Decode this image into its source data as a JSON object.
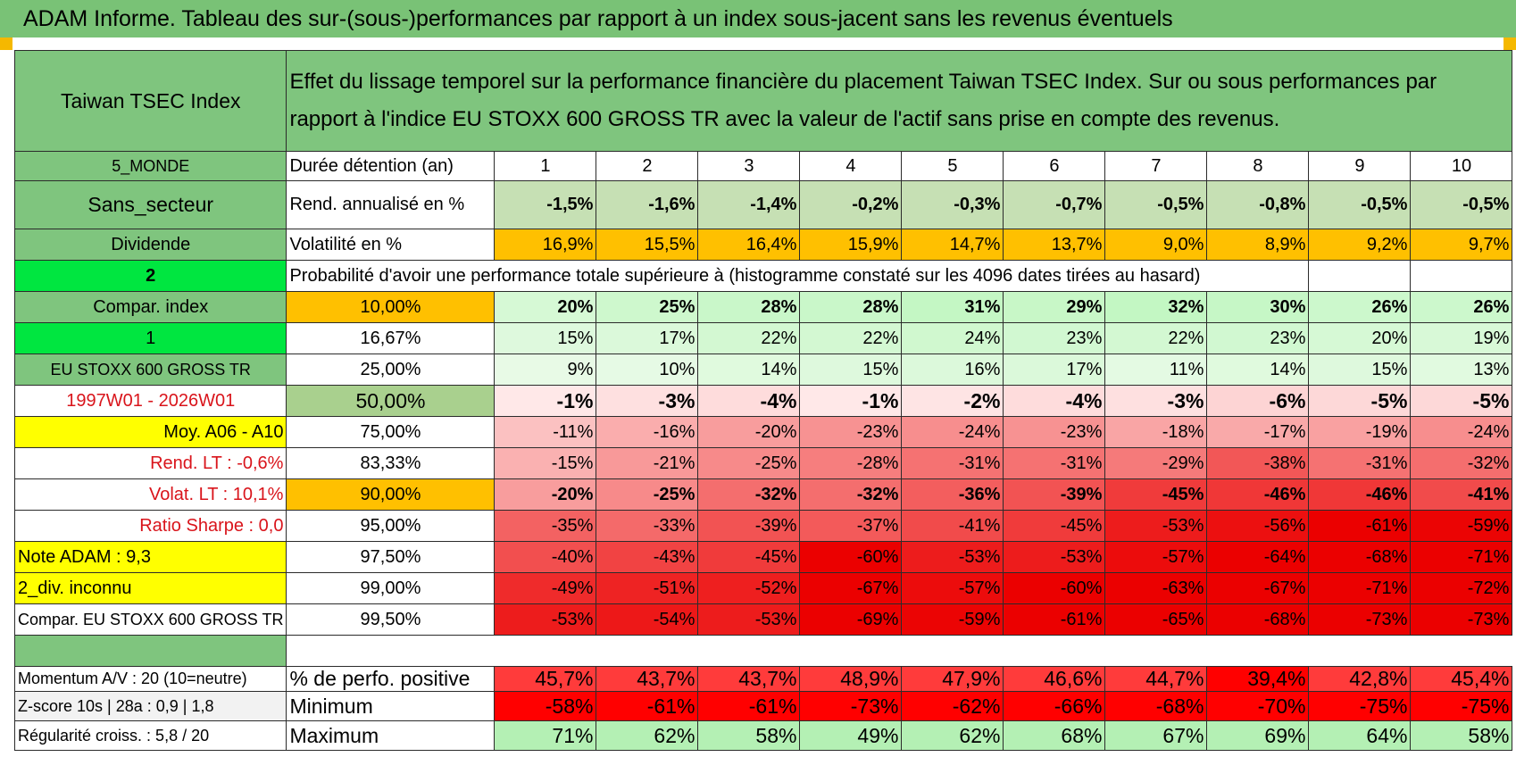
{
  "banner_title": "ADAM Informe. Tableau des sur-(sous-)performances par rapport à un index sous-jacent sans les revenus éventuels",
  "colors": {
    "header_green": "#7fc57e",
    "bright_green": "#00e640",
    "yellow": "#ffff00",
    "orange": "#ffc000",
    "label_red": "#d9141b"
  },
  "header": {
    "asset": "Taiwan TSEC Index",
    "description": "Effet du lissage temporel sur la performance financière du placement Taiwan TSEC Index. Sur ou sous performances par rapport à l'indice EU STOXX 600 GROSS TR avec la valeur de l'actif sans prise en compte des revenus."
  },
  "left_labels": {
    "zone": "5_MONDE",
    "secteur": "Sans_secteur",
    "dividende": "Dividende",
    "choice_2": "2",
    "compar_index": "Compar. index",
    "choice_1": "1",
    "benchmark": "EU STOXX 600 GROSS TR",
    "period": "1997W01 - 2026W01",
    "moy": "Moy. A06 - A10",
    "rend_lt": "Rend. LT :    -0,6%",
    "volat_lt": "Volat. LT :    10,1%",
    "sharpe": "Ratio Sharpe :     0,0",
    "note": "Note ADAM : 9,3",
    "div": "2_div. inconnu",
    "compar": "Compar. EU STOXX 600 GROSS TR"
  },
  "row_labels": {
    "duree": "Durée détention (an)",
    "rend": "Rend. annualisé en %",
    "vol": "Volatilité en %",
    "proba": "Probabilité d'avoir une performance totale supérieure à (histogramme constaté sur les 4096 dates tirées au hasard)"
  },
  "years": [
    "1",
    "2",
    "3",
    "4",
    "5",
    "6",
    "7",
    "8",
    "9",
    "10"
  ],
  "rend": [
    "-1,5%",
    "-1,6%",
    "-1,4%",
    "-0,2%",
    "-0,3%",
    "-0,7%",
    "-0,5%",
    "-0,8%",
    "-0,5%",
    "-0,5%"
  ],
  "vol": [
    "16,9%",
    "15,5%",
    "16,4%",
    "15,9%",
    "14,7%",
    "13,7%",
    "9,0%",
    "8,9%",
    "9,2%",
    "9,7%"
  ],
  "quantiles": [
    {
      "q": "10,00%",
      "v": [
        "20%",
        "25%",
        "28%",
        "28%",
        "31%",
        "29%",
        "32%",
        "30%",
        "26%",
        "26%"
      ]
    },
    {
      "q": "16,67%",
      "v": [
        "15%",
        "17%",
        "22%",
        "22%",
        "24%",
        "23%",
        "22%",
        "23%",
        "20%",
        "19%"
      ]
    },
    {
      "q": "25,00%",
      "v": [
        "9%",
        "10%",
        "14%",
        "15%",
        "16%",
        "17%",
        "11%",
        "14%",
        "15%",
        "13%"
      ]
    },
    {
      "q": "50,00%",
      "v": [
        "-1%",
        "-3%",
        "-4%",
        "-1%",
        "-2%",
        "-4%",
        "-3%",
        "-6%",
        "-5%",
        "-5%"
      ]
    },
    {
      "q": "75,00%",
      "v": [
        "-11%",
        "-16%",
        "-20%",
        "-23%",
        "-24%",
        "-23%",
        "-18%",
        "-17%",
        "-19%",
        "-24%"
      ]
    },
    {
      "q": "83,33%",
      "v": [
        "-15%",
        "-21%",
        "-25%",
        "-28%",
        "-31%",
        "-31%",
        "-29%",
        "-38%",
        "-31%",
        "-32%"
      ]
    },
    {
      "q": "90,00%",
      "v": [
        "-20%",
        "-25%",
        "-32%",
        "-32%",
        "-36%",
        "-39%",
        "-45%",
        "-46%",
        "-46%",
        "-41%"
      ]
    },
    {
      "q": "95,00%",
      "v": [
        "-35%",
        "-33%",
        "-39%",
        "-37%",
        "-41%",
        "-45%",
        "-53%",
        "-56%",
        "-61%",
        "-59%"
      ]
    },
    {
      "q": "97,50%",
      "v": [
        "-40%",
        "-43%",
        "-45%",
        "-60%",
        "-53%",
        "-53%",
        "-57%",
        "-64%",
        "-68%",
        "-71%"
      ]
    },
    {
      "q": "99,00%",
      "v": [
        "-49%",
        "-51%",
        "-52%",
        "-67%",
        "-57%",
        "-60%",
        "-63%",
        "-67%",
        "-71%",
        "-72%"
      ]
    },
    {
      "q": "99,50%",
      "v": [
        "-53%",
        "-54%",
        "-53%",
        "-69%",
        "-59%",
        "-61%",
        "-65%",
        "-68%",
        "-73%",
        "-73%"
      ]
    }
  ],
  "bottom": [
    {
      "left": "Momentum A/V : 20 (10=neutre)",
      "label": "% de perfo. positive",
      "v": [
        "45,7%",
        "43,7%",
        "43,7%",
        "48,9%",
        "47,9%",
        "46,6%",
        "44,7%",
        "39,4%",
        "42,8%",
        "45,4%"
      ]
    },
    {
      "left": "Z-score 10s | 28a : 0,9 | 1,8",
      "label": "Minimum",
      "v": [
        "-58%",
        "-61%",
        "-61%",
        "-73%",
        "-62%",
        "-66%",
        "-68%",
        "-70%",
        "-75%",
        "-75%"
      ]
    },
    {
      "left": "Régularité croiss. : 5,8 / 20",
      "label": "Maximum",
      "v": [
        "71%",
        "62%",
        "58%",
        "49%",
        "62%",
        "68%",
        "67%",
        "69%",
        "64%",
        "58%"
      ]
    }
  ]
}
